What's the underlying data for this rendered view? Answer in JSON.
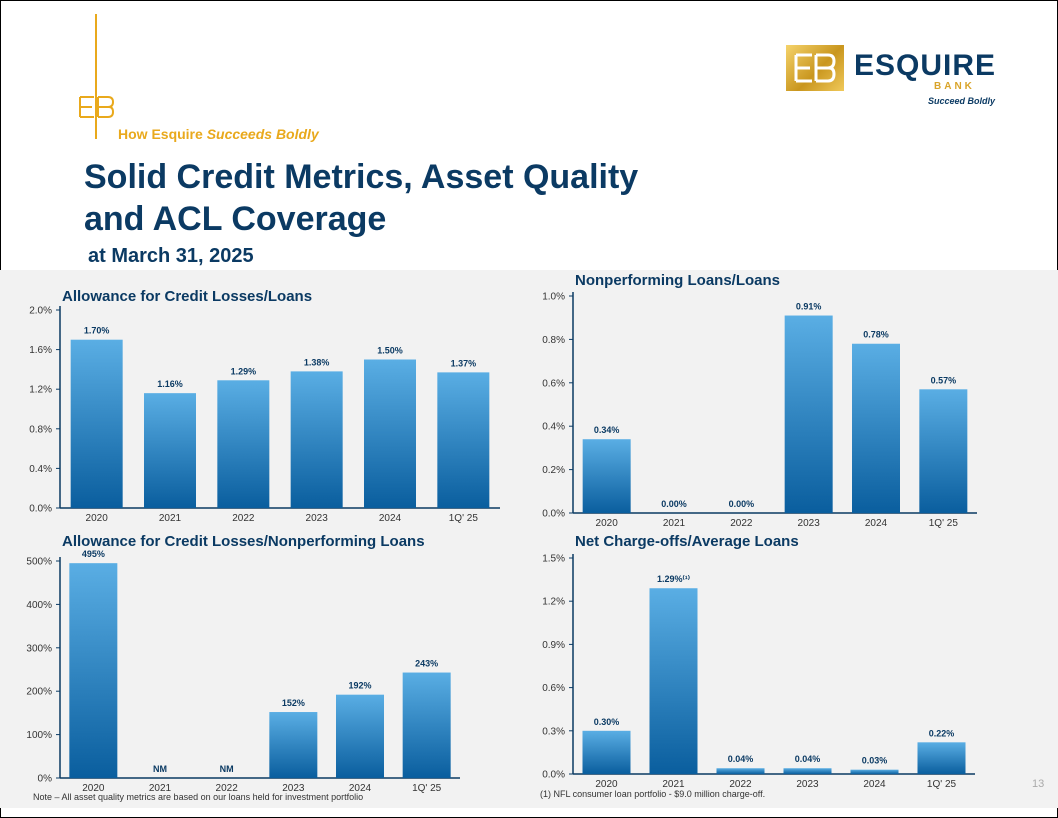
{
  "header": {
    "tagline_prefix": "How Esquire",
    "tagline_emphasis": "Succeeds Boldly",
    "title_line1": "Solid Credit Metrics, Asset Quality",
    "title_line2": "and ACL Coverage",
    "subtitle": "at March 31, 2025"
  },
  "brand": {
    "name": "ESQUIRE",
    "sub": "BANK",
    "tagline": "Succeed Boldly",
    "accent": "#e9a91c",
    "navy": "#0b3a63"
  },
  "chart_data": [
    {
      "id": "acl-loans",
      "type": "bar",
      "title": "Allowance for Credit Losses/Loans",
      "categories": [
        "2020",
        "2021",
        "2022",
        "2023",
        "2024",
        "1Q' 25"
      ],
      "values": [
        1.7,
        1.16,
        1.29,
        1.38,
        1.5,
        1.37
      ],
      "labels": [
        "1.70%",
        "1.16%",
        "1.29%",
        "1.38%",
        "1.50%",
        "1.37%"
      ],
      "yticks": [
        "0.0%",
        "0.4%",
        "0.8%",
        "1.2%",
        "1.6%",
        "2.0%"
      ],
      "ylim": [
        0,
        2.0
      ]
    },
    {
      "id": "npl-loans",
      "type": "bar",
      "title": "Nonperforming Loans/Loans",
      "categories": [
        "2020",
        "2021",
        "2022",
        "2023",
        "2024",
        "1Q' 25"
      ],
      "values": [
        0.34,
        0.0,
        0.0,
        0.91,
        0.78,
        0.57
      ],
      "labels": [
        "0.34%",
        "0.00%",
        "0.00%",
        "0.91%",
        "0.78%",
        "0.57%"
      ],
      "yticks": [
        "0.0%",
        "0.2%",
        "0.4%",
        "0.6%",
        "0.8%",
        "1.0%"
      ],
      "ylim": [
        0,
        1.0
      ]
    },
    {
      "id": "acl-npl",
      "type": "bar",
      "title": "Allowance for Credit Losses/Nonperforming Loans",
      "categories": [
        "2020",
        "2021",
        "2022",
        "2023",
        "2024",
        "1Q' 25"
      ],
      "values": [
        495,
        0,
        0,
        152,
        192,
        243
      ],
      "labels": [
        "495%",
        "NM",
        "NM",
        "152%",
        "192%",
        "243%"
      ],
      "yticks": [
        "0%",
        "100%",
        "200%",
        "300%",
        "400%",
        "500%"
      ],
      "ylim": [
        0,
        500
      ]
    },
    {
      "id": "nco-avg",
      "type": "bar",
      "title": "Net Charge-offs/Average Loans",
      "categories": [
        "2020",
        "2021",
        "2022",
        "2023",
        "2024",
        "1Q' 25"
      ],
      "values": [
        0.3,
        1.29,
        0.04,
        0.04,
        0.03,
        0.22
      ],
      "labels": [
        "0.30%",
        "1.29%⁽¹⁾",
        "0.04%",
        "0.04%",
        "0.03%",
        "0.22%"
      ],
      "yticks": [
        "0.0%",
        "0.3%",
        "0.6%",
        "0.9%",
        "1.2%",
        "1.5%"
      ],
      "ylim": [
        0,
        1.5
      ]
    }
  ],
  "notes": {
    "left": "Note – All asset quality metrics are based on our loans held for investment portfolio",
    "right": "(1) NFL consumer loan portfolio - $9.0 million charge-off."
  },
  "page_number": "13"
}
